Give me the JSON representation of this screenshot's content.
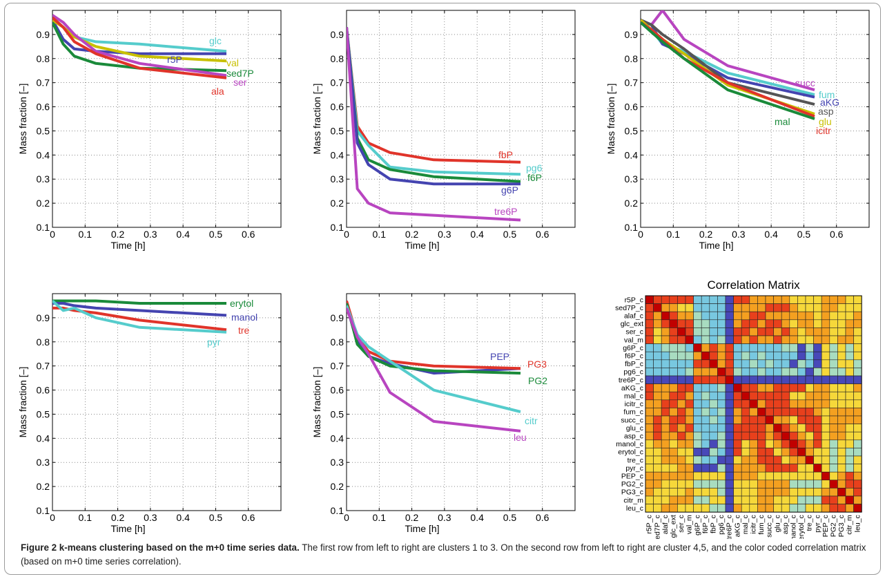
{
  "colors": {
    "red": "#e0342a",
    "blue": "#4444b0",
    "green": "#1a8a3a",
    "cyan": "#55cccc",
    "magenta": "#b845c0",
    "olive": "#c8c000",
    "gray": "#555555"
  },
  "common": {
    "ylabel": "Mass fraction [–]",
    "xlabel": "Time [h]"
  },
  "caption": {
    "bold": "Figure 2 k-means clustering based on the m+0 time series data.",
    "text": " The first row from left to right are clusters 1 to 3. On the second row from left to right are cluster 4,5, and the color coded correlation matrix (based on m+0 time series correlation)."
  },
  "chart_data": [
    {
      "type": "line",
      "name": "cluster-1",
      "xlim": [
        0,
        0.7
      ],
      "ylim": [
        0.1,
        1.0
      ],
      "xticks": [
        "0",
        "0.1",
        "0.2",
        "0.3",
        "0.4",
        "0.5",
        "0.6"
      ],
      "yticks": [
        "0.1",
        "0.2",
        "0.3",
        "0.4",
        "0.5",
        "0.6",
        "0.7",
        "0.8",
        "0.9"
      ],
      "xlabel": "Time [h]",
      "ylabel": "Mass fraction [–]",
      "grid": true,
      "series": [
        {
          "name": "glc",
          "color": "cyan",
          "x": [
            0,
            0.033,
            0.067,
            0.133,
            0.267,
            0.533
          ],
          "y": [
            0.97,
            0.93,
            0.89,
            0.87,
            0.86,
            0.83
          ]
        },
        {
          "name": "r5P",
          "color": "blue",
          "x": [
            0,
            0.033,
            0.067,
            0.133,
            0.267,
            0.533
          ],
          "y": [
            0.96,
            0.88,
            0.84,
            0.83,
            0.82,
            0.82
          ]
        },
        {
          "name": "val",
          "color": "olive",
          "x": [
            0,
            0.033,
            0.067,
            0.133,
            0.267,
            0.533
          ],
          "y": [
            0.96,
            0.93,
            0.89,
            0.85,
            0.81,
            0.79
          ]
        },
        {
          "name": "sed7P",
          "color": "green",
          "x": [
            0,
            0.033,
            0.067,
            0.133,
            0.267,
            0.533
          ],
          "y": [
            0.95,
            0.86,
            0.81,
            0.78,
            0.76,
            0.75
          ]
        },
        {
          "name": "ser",
          "color": "magenta",
          "x": [
            0,
            0.033,
            0.067,
            0.133,
            0.267,
            0.533
          ],
          "y": [
            0.98,
            0.95,
            0.9,
            0.83,
            0.78,
            0.73
          ]
        },
        {
          "name": "ala",
          "color": "red",
          "x": [
            0,
            0.033,
            0.067,
            0.133,
            0.267,
            0.533
          ],
          "y": [
            0.97,
            0.93,
            0.87,
            0.82,
            0.76,
            0.72
          ]
        }
      ]
    },
    {
      "type": "line",
      "name": "cluster-2",
      "xlim": [
        0,
        0.7
      ],
      "ylim": [
        0.1,
        1.0
      ],
      "xticks": [
        "0",
        "0.1",
        "0.2",
        "0.3",
        "0.4",
        "0.5",
        "0.6"
      ],
      "yticks": [
        "0.1",
        "0.2",
        "0.3",
        "0.4",
        "0.5",
        "0.6",
        "0.7",
        "0.8",
        "0.9"
      ],
      "xlabel": "Time [h]",
      "ylabel": "Mass fraction [–]",
      "grid": true,
      "series": [
        {
          "name": "fbP",
          "color": "red",
          "x": [
            0,
            0.033,
            0.067,
            0.133,
            0.267,
            0.533
          ],
          "y": [
            0.93,
            0.52,
            0.45,
            0.41,
            0.38,
            0.37
          ]
        },
        {
          "name": "pg6",
          "color": "cyan",
          "x": [
            0,
            0.033,
            0.067,
            0.133,
            0.267,
            0.533
          ],
          "y": [
            0.93,
            0.5,
            0.44,
            0.35,
            0.33,
            0.32
          ]
        },
        {
          "name": "f6P",
          "color": "green",
          "x": [
            0,
            0.033,
            0.067,
            0.133,
            0.267,
            0.533
          ],
          "y": [
            0.93,
            0.47,
            0.38,
            0.34,
            0.31,
            0.29
          ]
        },
        {
          "name": "g6P",
          "color": "blue",
          "x": [
            0,
            0.033,
            0.067,
            0.133,
            0.267,
            0.533
          ],
          "y": [
            0.93,
            0.45,
            0.36,
            0.3,
            0.28,
            0.28
          ]
        },
        {
          "name": "tre6P",
          "color": "magenta",
          "x": [
            0,
            0.033,
            0.067,
            0.133,
            0.267,
            0.533
          ],
          "y": [
            0.93,
            0.26,
            0.2,
            0.16,
            0.15,
            0.13
          ]
        }
      ]
    },
    {
      "type": "line",
      "name": "cluster-3",
      "xlim": [
        0,
        0.7
      ],
      "ylim": [
        0.1,
        1.0
      ],
      "xticks": [
        "0",
        "0.1",
        "0.2",
        "0.3",
        "0.4",
        "0.5",
        "0.6"
      ],
      "yticks": [
        "0.1",
        "0.2",
        "0.3",
        "0.4",
        "0.5",
        "0.6",
        "0.7",
        "0.8",
        "0.9"
      ],
      "xlabel": "Time [h]",
      "ylabel": "Mass fraction [–]",
      "grid": true,
      "series": [
        {
          "name": "succ",
          "color": "magenta",
          "x": [
            0,
            0.033,
            0.067,
            0.133,
            0.267,
            0.533
          ],
          "y": [
            0.96,
            0.94,
            1.0,
            0.88,
            0.77,
            0.67
          ]
        },
        {
          "name": "fum",
          "color": "cyan",
          "x": [
            0,
            0.033,
            0.067,
            0.133,
            0.267,
            0.533
          ],
          "y": [
            0.95,
            0.92,
            0.86,
            0.83,
            0.74,
            0.65
          ]
        },
        {
          "name": "aKG",
          "color": "blue",
          "x": [
            0,
            0.033,
            0.067,
            0.133,
            0.267,
            0.533
          ],
          "y": [
            0.96,
            0.94,
            0.86,
            0.82,
            0.72,
            0.64
          ]
        },
        {
          "name": "asp",
          "color": "gray",
          "x": [
            0,
            0.033,
            0.067,
            0.133,
            0.267,
            0.533
          ],
          "y": [
            0.96,
            0.94,
            0.9,
            0.84,
            0.7,
            0.61
          ]
        },
        {
          "name": "glu",
          "color": "olive",
          "x": [
            0,
            0.033,
            0.067,
            0.133,
            0.267,
            0.533
          ],
          "y": [
            0.96,
            0.92,
            0.88,
            0.82,
            0.69,
            0.57
          ]
        },
        {
          "name": "icitr",
          "color": "red",
          "x": [
            0,
            0.033,
            0.067,
            0.133,
            0.267,
            0.533
          ],
          "y": [
            0.95,
            0.92,
            0.88,
            0.8,
            0.7,
            0.56
          ]
        },
        {
          "name": "mal",
          "color": "green",
          "x": [
            0,
            0.033,
            0.067,
            0.133,
            0.267,
            0.533
          ],
          "y": [
            0.95,
            0.91,
            0.87,
            0.8,
            0.67,
            0.55
          ]
        }
      ]
    },
    {
      "type": "line",
      "name": "cluster-4",
      "xlim": [
        0,
        0.7
      ],
      "ylim": [
        0.1,
        1.0
      ],
      "xticks": [
        "0",
        "0.1",
        "0.2",
        "0.3",
        "0.4",
        "0.5",
        "0.6"
      ],
      "yticks": [
        "0.1",
        "0.2",
        "0.3",
        "0.4",
        "0.5",
        "0.6",
        "0.7",
        "0.8",
        "0.9"
      ],
      "xlabel": "Time [h]",
      "ylabel": "Mass fraction [–]",
      "grid": true,
      "series": [
        {
          "name": "erytol",
          "color": "green",
          "x": [
            0,
            0.033,
            0.067,
            0.133,
            0.267,
            0.533
          ],
          "y": [
            0.97,
            0.97,
            0.97,
            0.97,
            0.96,
            0.96
          ]
        },
        {
          "name": "manol",
          "color": "blue",
          "x": [
            0,
            0.033,
            0.067,
            0.133,
            0.267,
            0.533
          ],
          "y": [
            0.96,
            0.96,
            0.95,
            0.94,
            0.93,
            0.91
          ]
        },
        {
          "name": "tre",
          "color": "red",
          "x": [
            0,
            0.033,
            0.067,
            0.133,
            0.267,
            0.533
          ],
          "y": [
            0.94,
            0.94,
            0.93,
            0.92,
            0.89,
            0.85
          ]
        },
        {
          "name": "pyr",
          "color": "cyan",
          "x": [
            0,
            0.033,
            0.067,
            0.133,
            0.267,
            0.533
          ],
          "y": [
            0.97,
            0.93,
            0.94,
            0.9,
            0.86,
            0.84
          ]
        }
      ]
    },
    {
      "type": "line",
      "name": "cluster-5",
      "xlim": [
        0,
        0.7
      ],
      "ylim": [
        0.1,
        1.0
      ],
      "xticks": [
        "0",
        "0.1",
        "0.2",
        "0.3",
        "0.4",
        "0.5",
        "0.6"
      ],
      "yticks": [
        "0.1",
        "0.2",
        "0.3",
        "0.4",
        "0.5",
        "0.6",
        "0.7",
        "0.8",
        "0.9"
      ],
      "xlabel": "Time [h]",
      "ylabel": "Mass fraction [–]",
      "grid": true,
      "series": [
        {
          "name": "PEP",
          "color": "blue",
          "x": [
            0,
            0.033,
            0.067,
            0.133,
            0.267,
            0.533
          ],
          "y": [
            0.95,
            0.8,
            0.74,
            0.71,
            0.67,
            0.69
          ]
        },
        {
          "name": "PG3",
          "color": "red",
          "x": [
            0,
            0.033,
            0.067,
            0.133,
            0.267,
            0.533
          ],
          "y": [
            0.97,
            0.82,
            0.76,
            0.72,
            0.7,
            0.69
          ]
        },
        {
          "name": "PG2",
          "color": "green",
          "x": [
            0,
            0.033,
            0.067,
            0.133,
            0.267,
            0.533
          ],
          "y": [
            0.96,
            0.79,
            0.74,
            0.7,
            0.68,
            0.67
          ]
        },
        {
          "name": "citr",
          "color": "cyan",
          "x": [
            0,
            0.033,
            0.067,
            0.133,
            0.267,
            0.533
          ],
          "y": [
            0.95,
            0.83,
            0.78,
            0.72,
            0.6,
            0.51
          ]
        },
        {
          "name": "leu",
          "color": "magenta",
          "x": [
            0,
            0.033,
            0.067,
            0.133,
            0.267,
            0.533
          ],
          "y": [
            0.94,
            0.82,
            0.75,
            0.59,
            0.47,
            0.43
          ]
        }
      ]
    },
    {
      "type": "heatmap",
      "name": "correlation-matrix",
      "title": "Correlation Matrix",
      "labels": [
        "r5P_c",
        "sed7P_c",
        "alaf_c",
        "glc_ext",
        "ser_c",
        "val_m",
        "g6P_c",
        "f6P_c",
        "fbP_c",
        "pg6_c",
        "tre6P_c",
        "aKG_c",
        "mal_c",
        "icitr_c",
        "fum_c",
        "succ_c",
        "glu_c",
        "asp_c",
        "manol_c",
        "erytol_c",
        "tre_c",
        "pyr_c",
        "PEP_c",
        "PG2_c",
        "PG3_c",
        "citr_m",
        "leu_c"
      ],
      "clusters": [
        1,
        1,
        1,
        1,
        1,
        1,
        2,
        2,
        2,
        2,
        2,
        3,
        3,
        3,
        3,
        3,
        3,
        3,
        4,
        4,
        4,
        4,
        5,
        5,
        5,
        5,
        5
      ],
      "palette": {
        "high": "#e8401c",
        "midhigh": "#f4a020",
        "mid": "#f6d83a",
        "midlow": "#a8dcc0",
        "low": "#78c8e0",
        "neg": "#4848b8",
        "diag": "#c00000"
      }
    }
  ]
}
